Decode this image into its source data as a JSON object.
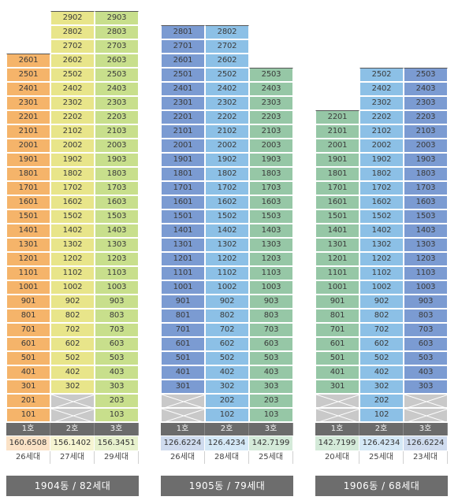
{
  "buildings": [
    {
      "id": "1904",
      "footer": "1904동 / 82세대",
      "columns": [
        {
          "ho": "1호",
          "top": 26,
          "empty": [],
          "area": "160.6508",
          "units": "26세대",
          "color": "#f5b46a",
          "areaColor": "#fbe2c6"
        },
        {
          "ho": "2호",
          "top": 29,
          "empty": [
            1,
            2
          ],
          "area": "156.1402",
          "units": "27세대",
          "color": "#e8e58a",
          "areaColor": "#f6f5d2"
        },
        {
          "ho": "3호",
          "top": 29,
          "empty": [],
          "area": "156.3451",
          "units": "29세대",
          "color": "#c8df8c",
          "areaColor": "#e7f1cd"
        }
      ]
    },
    {
      "id": "1905",
      "footer": "1905동 / 79세대",
      "columns": [
        {
          "ho": "1호",
          "top": 28,
          "empty": [
            1,
            2
          ],
          "area": "126.6224",
          "units": "26세대",
          "color": "#7b9bd2",
          "areaColor": "#cfdbee"
        },
        {
          "ho": "2호",
          "top": 28,
          "empty": [],
          "area": "126.4234",
          "units": "28세대",
          "color": "#8cc0e6",
          "areaColor": "#d4e8f6"
        },
        {
          "ho": "3호",
          "top": 25,
          "empty": [],
          "area": "142.7199",
          "units": "25세대",
          "color": "#96c7a6",
          "areaColor": "#d4ead9"
        }
      ]
    },
    {
      "id": "1906",
      "footer": "1906동 / 68세대",
      "columns": [
        {
          "ho": "1호",
          "top": 22,
          "empty": [
            1,
            2
          ],
          "area": "142.7199",
          "units": "20세대",
          "color": "#96c7a6",
          "areaColor": "#d4ead9"
        },
        {
          "ho": "2호",
          "top": 25,
          "empty": [],
          "area": "126.4234",
          "units": "25세대",
          "color": "#8cc0e6",
          "areaColor": "#d4e8f6"
        },
        {
          "ho": "3호",
          "top": 25,
          "empty": [
            1,
            2
          ],
          "area": "126.6224",
          "units": "23세대",
          "color": "#7b9bd2",
          "areaColor": "#cfdbee"
        }
      ]
    }
  ]
}
